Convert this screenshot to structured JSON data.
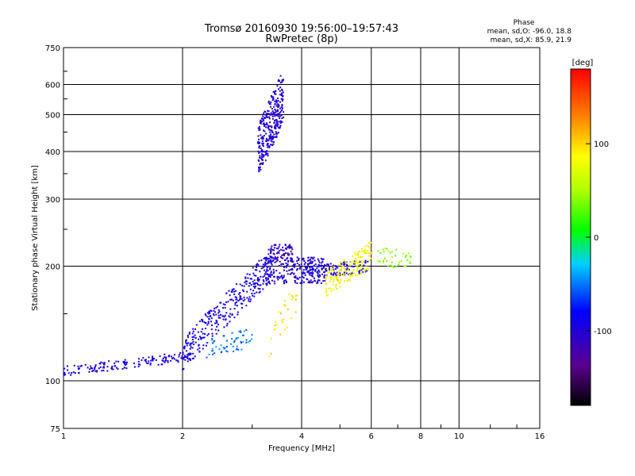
{
  "title_line1": "Tromsø 20160930 19:56:00–19:57:43",
  "title_line2": "RwPretec (8p)",
  "phase_info": {
    "heading": "Phase",
    "line1": "mean, sd,O: -96.0, 18.8",
    "line2": "mean, sd,X: 85.9, 21.9"
  },
  "chart_data": {
    "type": "scatter",
    "xlabel": "Frequency [MHz]",
    "ylabel": "Stationary phase Virtual Height [km]",
    "xscale": "log",
    "yscale": "log",
    "xlim": [
      1,
      16
    ],
    "ylim": [
      75,
      750
    ],
    "xticks": [
      1,
      2,
      4,
      6,
      8,
      10,
      16
    ],
    "yticks": [
      75,
      100,
      200,
      300,
      400,
      500,
      600,
      750
    ],
    "grid": true,
    "colorbar": {
      "label": "[deg]",
      "range": [
        -180,
        180
      ],
      "ticks": [
        100,
        0,
        -100
      ]
    },
    "clusters": [
      {
        "desc": "F-region trace low",
        "x_range": [
          1.0,
          2.1
        ],
        "y_center_start": 106,
        "y_center_end": 116,
        "phase": -95,
        "count": 160,
        "spread": 0.015
      },
      {
        "desc": "F-region rising",
        "x_range": [
          2.0,
          3.4
        ],
        "y_center_start": 118,
        "y_center_end": 205,
        "phase": -90,
        "count": 320,
        "spread": 0.05
      },
      {
        "desc": "cyan patch",
        "x_range": [
          2.3,
          3.0
        ],
        "y_center_start": 122,
        "y_center_end": 130,
        "phase": -50,
        "count": 60,
        "spread": 0.03
      },
      {
        "desc": "plateau",
        "x_range": [
          3.2,
          4.6
        ],
        "y_center_start": 195,
        "y_center_end": 195,
        "phase": -100,
        "count": 240,
        "spread": 0.04
      },
      {
        "desc": "plateau upper",
        "x_range": [
          3.3,
          3.8
        ],
        "y_center_start": 215,
        "y_center_end": 215,
        "phase": -110,
        "count": 80,
        "spread": 0.03
      },
      {
        "desc": "plateau right",
        "x_range": [
          4.0,
          5.9
        ],
        "y_center_start": 192,
        "y_center_end": 200,
        "phase": -95,
        "count": 120,
        "spread": 0.02
      },
      {
        "desc": "upper echo column",
        "x_range": [
          3.1,
          3.6
        ],
        "y_center_start": 400,
        "y_center_end": 560,
        "phase": -100,
        "count": 320,
        "spread": 0.08
      },
      {
        "desc": "yellow X-mode",
        "x_range": [
          4.6,
          6.0
        ],
        "y_center_start": 180,
        "y_center_end": 215,
        "phase": 85,
        "count": 160,
        "spread": 0.04
      },
      {
        "desc": "green right",
        "x_range": [
          6.2,
          7.6
        ],
        "y_center_start": 210,
        "y_center_end": 210,
        "phase": 40,
        "count": 40,
        "spread": 0.03
      },
      {
        "desc": "orange near 3.7",
        "x_range": [
          3.3,
          3.9
        ],
        "y_center_start": 125,
        "y_center_end": 170,
        "phase": 95,
        "count": 30,
        "spread": 0.05
      }
    ]
  }
}
